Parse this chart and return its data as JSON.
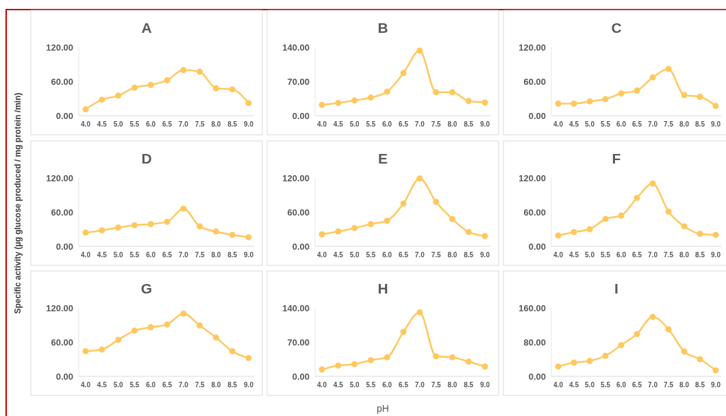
{
  "chart_data": [
    {
      "type": "line",
      "title": "A",
      "categories": [
        "4.0",
        "4.5",
        "5.0",
        "5.5",
        "6.0",
        "6.5",
        "7.0",
        "7.5",
        "8.0",
        "8.5",
        "9.0"
      ],
      "series": [
        {
          "color": "#ffc85e",
          "values": [
            11,
            28,
            35,
            49,
            54,
            62,
            80,
            77,
            48,
            46,
            22
          ]
        }
      ],
      "ylim": [
        0,
        120
      ],
      "yticks": [
        {
          "value": 0,
          "label": "0.00"
        },
        {
          "value": 60,
          "label": "60.00"
        },
        {
          "value": 120,
          "label": "120.00"
        }
      ],
      "marker": "circle",
      "grid": false
    },
    {
      "type": "line",
      "title": "B",
      "categories": [
        "4.0",
        "4.5",
        "5.0",
        "5.5",
        "6.0",
        "6.5",
        "7.0",
        "7.5",
        "8.0",
        "8.5",
        "9.0"
      ],
      "series": [
        {
          "color": "#ffc85e",
          "values": [
            22,
            26,
            31,
            37,
            49,
            87,
            133,
            48,
            48,
            30,
            27
          ]
        }
      ],
      "ylim": [
        0,
        140
      ],
      "yticks": [
        {
          "value": 0,
          "label": "0.00"
        },
        {
          "value": 70,
          "label": "70.00"
        },
        {
          "value": 140,
          "label": "140.00"
        }
      ],
      "marker": "circle",
      "grid": false
    },
    {
      "type": "line",
      "title": "C",
      "categories": [
        "4.0",
        "4.5",
        "5.0",
        "5.5",
        "6.0",
        "6.5",
        "7.0",
        "7.5",
        "8.0",
        "8.5",
        "9.0"
      ],
      "series": [
        {
          "color": "#ffc85e",
          "values": [
            21,
            21,
            25,
            29,
            39,
            44,
            67,
            82,
            36,
            33,
            17
          ]
        }
      ],
      "ylim": [
        0,
        120
      ],
      "yticks": [
        {
          "value": 0,
          "label": "0.00"
        },
        {
          "value": 60,
          "label": "60.00"
        },
        {
          "value": 120,
          "label": "120.00"
        }
      ],
      "marker": "circle",
      "grid": false
    },
    {
      "type": "line",
      "title": "D",
      "ylabel": "Specific activity (µg glucose produced / mg protein /min)",
      "categories": [
        "4.0",
        "4.5",
        "5.0",
        "5.5",
        "6.0",
        "6.5",
        "7.0",
        "7.5",
        "8.0",
        "8.5",
        "9.0"
      ],
      "series": [
        {
          "color": "#ffc85e",
          "values": [
            24,
            28,
            33,
            37,
            39,
            43,
            66,
            35,
            26,
            20,
            16
          ]
        }
      ],
      "ylim": [
        0,
        120
      ],
      "yticks": [
        {
          "value": 0,
          "label": "0.00"
        },
        {
          "value": 60,
          "label": "60.00"
        },
        {
          "value": 120,
          "label": "120.00"
        }
      ],
      "marker": "circle",
      "grid": false
    },
    {
      "type": "line",
      "title": "E",
      "categories": [
        "4.0",
        "4.5",
        "5.0",
        "5.5",
        "6.0",
        "6.5",
        "7.0",
        "7.5",
        "8.0",
        "8.5",
        "9.0"
      ],
      "series": [
        {
          "color": "#ffc85e",
          "values": [
            21,
            26,
            32,
            39,
            45,
            75,
            119,
            78,
            48,
            25,
            18
          ]
        }
      ],
      "ylim": [
        0,
        120
      ],
      "yticks": [
        {
          "value": 0,
          "label": "0.00"
        },
        {
          "value": 60,
          "label": "60.00"
        },
        {
          "value": 120,
          "label": "120.00"
        }
      ],
      "marker": "circle",
      "grid": false
    },
    {
      "type": "line",
      "title": "F",
      "categories": [
        "4.0",
        "4.5",
        "5.0",
        "5.5",
        "6.0",
        "6.5",
        "7.0",
        "7.5",
        "8.0",
        "8.5",
        "9.0"
      ],
      "series": [
        {
          "color": "#ffc85e",
          "values": [
            19,
            25,
            30,
            48,
            54,
            85,
            110,
            61,
            35,
            22,
            20
          ]
        }
      ],
      "ylim": [
        0,
        120
      ],
      "yticks": [
        {
          "value": 0,
          "label": "0.00"
        },
        {
          "value": 60,
          "label": "60.00"
        },
        {
          "value": 120,
          "label": "120.00"
        }
      ],
      "marker": "circle",
      "grid": false
    },
    {
      "type": "line",
      "title": "G",
      "categories": [
        "4.0",
        "4.5",
        "5.0",
        "5.5",
        "6.0",
        "6.5",
        "7.0",
        "7.5",
        "8.0",
        "8.5",
        "9.0"
      ],
      "series": [
        {
          "color": "#ffc85e",
          "values": [
            44,
            47,
            64,
            80,
            86,
            91,
            110,
            89,
            68,
            44,
            32
          ]
        }
      ],
      "ylim": [
        0,
        120
      ],
      "yticks": [
        {
          "value": 0,
          "label": "0.00"
        },
        {
          "value": 60,
          "label": "60.00"
        },
        {
          "value": 120,
          "label": "120.00"
        }
      ],
      "marker": "circle",
      "grid": false
    },
    {
      "type": "line",
      "title": "H",
      "xlabel": "pH",
      "categories": [
        "4.0",
        "4.5",
        "5.0",
        "5.5",
        "6.0",
        "6.5",
        "7.0",
        "7.5",
        "8.0",
        "8.5",
        "9.0"
      ],
      "series": [
        {
          "color": "#ffc85e",
          "values": [
            14,
            22,
            25,
            33,
            39,
            91,
            131,
            41,
            39,
            30,
            20
          ]
        }
      ],
      "ylim": [
        0,
        140
      ],
      "yticks": [
        {
          "value": 0,
          "label": "0.00"
        },
        {
          "value": 70,
          "label": "70.00"
        },
        {
          "value": 140,
          "label": "140.00"
        }
      ],
      "marker": "circle",
      "grid": false
    },
    {
      "type": "line",
      "title": "I",
      "categories": [
        "4.0",
        "4.5",
        "5.0",
        "5.5",
        "6.0",
        "6.5",
        "7.0",
        "7.5",
        "8.0",
        "8.5",
        "9.0"
      ],
      "series": [
        {
          "color": "#ffc85e",
          "values": [
            23,
            32,
            36,
            48,
            73,
            99,
            139,
            110,
            58,
            40,
            14
          ]
        }
      ],
      "ylim": [
        0,
        160
      ],
      "yticks": [
        {
          "value": 0,
          "label": "0.00"
        },
        {
          "value": 80,
          "label": "80.00"
        },
        {
          "value": 160,
          "label": "160.00"
        }
      ],
      "marker": "circle",
      "grid": false
    }
  ]
}
